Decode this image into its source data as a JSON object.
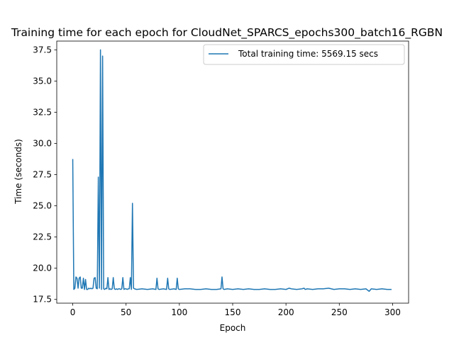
{
  "chart_data": {
    "type": "line",
    "title": "Training time for each epoch for CloudNet_SPARCS_epochs300_batch16_RGBN",
    "xlabel": "Epoch",
    "ylabel": "Time (seconds)",
    "xlim": [
      -15,
      315
    ],
    "ylim": [
      17.2,
      38.2
    ],
    "xticks": [
      0,
      50,
      100,
      150,
      200,
      250,
      300
    ],
    "yticks": [
      17.5,
      20.0,
      22.5,
      25.0,
      27.5,
      30.0,
      32.5,
      35.0,
      37.5
    ],
    "xtick_labels": [
      "0",
      "50",
      "100",
      "150",
      "200",
      "250",
      "300"
    ],
    "ytick_labels": [
      "17.5",
      "20.0",
      "22.5",
      "25.0",
      "27.5",
      "30.0",
      "32.5",
      "35.0",
      "37.5"
    ],
    "grid": false,
    "legend_position": "top-right",
    "color": "#1f77b4",
    "series": [
      {
        "name": "Total training time: 5569.15 secs",
        "x": [
          0,
          1,
          2,
          3,
          4,
          5,
          6,
          7,
          8,
          9,
          10,
          11,
          12,
          13,
          14,
          15,
          16,
          17,
          18,
          19,
          20,
          21,
          22,
          23,
          24,
          25,
          26,
          27,
          28,
          29,
          30,
          31,
          32,
          33,
          34,
          35,
          36,
          37,
          38,
          39,
          40,
          41,
          42,
          43,
          44,
          45,
          46,
          47,
          48,
          49,
          50,
          51,
          52,
          53,
          54,
          55,
          56,
          57,
          58,
          60,
          65,
          70,
          75,
          78,
          79,
          80,
          81,
          85,
          88,
          89,
          90,
          91,
          95,
          97,
          98,
          99,
          100,
          105,
          110,
          115,
          120,
          125,
          130,
          135,
          139,
          140,
          141,
          142,
          145,
          150,
          155,
          160,
          165,
          170,
          175,
          180,
          185,
          190,
          195,
          200,
          203,
          205,
          210,
          215,
          217,
          218,
          220,
          225,
          230,
          235,
          240,
          245,
          250,
          255,
          260,
          265,
          270,
          275,
          278,
          280,
          285,
          290,
          295,
          299
        ],
        "values": [
          28.75,
          18.3,
          18.4,
          19.3,
          19.2,
          18.4,
          19.2,
          19.3,
          18.4,
          18.4,
          19.2,
          18.3,
          19.1,
          18.3,
          18.3,
          18.4,
          18.35,
          18.4,
          18.35,
          18.4,
          19.2,
          19.25,
          18.4,
          18.35,
          27.3,
          18.4,
          37.5,
          18.3,
          37.0,
          18.35,
          18.3,
          18.4,
          18.35,
          19.25,
          18.3,
          18.35,
          18.3,
          18.35,
          19.25,
          18.35,
          18.3,
          18.35,
          18.3,
          18.35,
          18.35,
          18.3,
          18.35,
          19.25,
          18.3,
          18.35,
          18.35,
          18.3,
          18.35,
          18.35,
          19.25,
          18.3,
          25.2,
          18.4,
          18.35,
          18.3,
          18.35,
          18.3,
          18.35,
          18.3,
          19.2,
          18.35,
          18.3,
          18.35,
          18.3,
          19.2,
          18.35,
          18.3,
          18.35,
          18.3,
          19.2,
          18.35,
          18.3,
          18.35,
          18.35,
          18.3,
          18.3,
          18.35,
          18.3,
          18.3,
          18.35,
          19.3,
          18.35,
          18.3,
          18.35,
          18.3,
          18.35,
          18.3,
          18.35,
          18.3,
          18.3,
          18.35,
          18.3,
          18.3,
          18.35,
          18.3,
          18.4,
          18.35,
          18.3,
          18.35,
          18.4,
          18.3,
          18.35,
          18.3,
          18.35,
          18.35,
          18.4,
          18.3,
          18.35,
          18.35,
          18.3,
          18.35,
          18.3,
          18.35,
          18.15,
          18.35,
          18.3,
          18.35,
          18.3,
          18.3
        ]
      }
    ]
  }
}
